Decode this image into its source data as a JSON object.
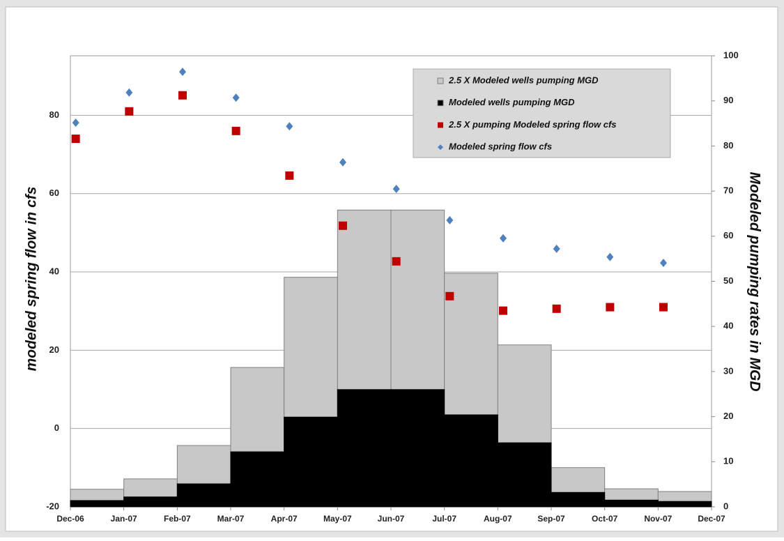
{
  "chart_data": {
    "type": "combo",
    "y_label": "modeled spring flow in cfs",
    "y2_label": "Modeled pumping rates in MGD",
    "xlim": [
      0,
      12
    ],
    "xticks": [
      {
        "value": 0,
        "label": "Dec-06"
      },
      {
        "value": 1,
        "label": "Jan-07"
      },
      {
        "value": 2,
        "label": "Feb-07"
      },
      {
        "value": 3,
        "label": "Mar-07"
      },
      {
        "value": 4,
        "label": "Apr-07"
      },
      {
        "value": 5,
        "label": "May-07"
      },
      {
        "value": 6,
        "label": "Jun-07"
      },
      {
        "value": 7,
        "label": "Jul-07"
      },
      {
        "value": 8,
        "label": "Aug-07"
      },
      {
        "value": 9,
        "label": "Sep-07"
      },
      {
        "value": 10,
        "label": "Oct-07"
      },
      {
        "value": 11,
        "label": "Nov-07"
      },
      {
        "value": 12,
        "label": "Dec-07"
      }
    ],
    "ylim": [
      -20,
      95.2
    ],
    "yticks": [
      -20,
      0,
      20,
      40,
      60,
      80
    ],
    "y2lim": [
      0,
      100
    ],
    "y2ticks": [
      0,
      10,
      20,
      30,
      40,
      50,
      60,
      70,
      80,
      90,
      100
    ],
    "grid": true,
    "legend": "upper-right",
    "series": [
      {
        "name": "2.5 X Modeled wells pumping MGD",
        "type": "bar",
        "axis": "y2",
        "color": "#c8c8c8",
        "bins": [
          0,
          1,
          2,
          3,
          4,
          5,
          6,
          7,
          8,
          9,
          10,
          11,
          12
        ],
        "values": [
          3.9,
          6.2,
          13.6,
          30.9,
          50.9,
          65.8,
          65.8,
          51.8,
          35.9,
          8.7,
          4.0,
          3.4
        ]
      },
      {
        "name": "Modeled wells pumping MGD",
        "type": "bar",
        "axis": "y2",
        "color": "#000000",
        "bins": [
          0,
          1,
          2,
          3,
          4,
          5,
          6,
          7,
          8,
          9,
          10,
          11,
          12
        ],
        "values": [
          1.4,
          2.2,
          5.1,
          12.2,
          19.9,
          26.0,
          26.0,
          20.4,
          14.2,
          3.2,
          1.5,
          1.2
        ]
      },
      {
        "name": "2.5 X pumping Modeled spring flow cfs",
        "type": "scatter",
        "marker": "square",
        "color": "#c00000",
        "x": [
          0.1,
          1.1,
          2.1,
          3.1,
          4.1,
          5.1,
          6.1,
          7.1,
          8.1,
          9.1,
          10.1,
          11.1
        ],
        "values": [
          74.0,
          81.0,
          85.1,
          76.0,
          64.6,
          51.8,
          42.7,
          33.8,
          30.1,
          30.6,
          31.0,
          31.0
        ]
      },
      {
        "name": "Modeled spring flow cfs",
        "type": "scatter",
        "marker": "diamond",
        "color": "#4f81bd",
        "x": [
          0.1,
          1.1,
          2.1,
          3.1,
          4.1,
          5.1,
          6.1,
          7.1,
          8.1,
          9.1,
          10.1,
          11.1
        ],
        "values": [
          78.1,
          85.8,
          91.1,
          84.5,
          77.2,
          68.0,
          61.2,
          53.2,
          48.6,
          45.9,
          43.8,
          42.3
        ]
      }
    ]
  }
}
